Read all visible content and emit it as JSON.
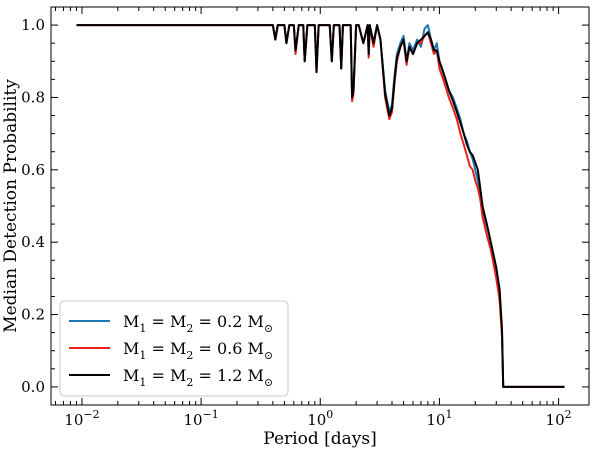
{
  "chart_data": {
    "type": "line",
    "xlabel": "Period [days]",
    "ylabel": "Median Detection Probability",
    "xscale": "log",
    "xlim": [
      0.0055,
      180
    ],
    "ylim": [
      -0.05,
      1.05
    ],
    "xticks": [
      {
        "value": 0.01,
        "base": "10",
        "exp": "−2"
      },
      {
        "value": 0.1,
        "base": "10",
        "exp": "−1"
      },
      {
        "value": 1,
        "base": "10",
        "exp": "0"
      },
      {
        "value": 10,
        "base": "10",
        "exp": "1"
      },
      {
        "value": 100,
        "base": "10",
        "exp": "2"
      }
    ],
    "yticks": [
      {
        "value": 0.0,
        "label": "0.0"
      },
      {
        "value": 0.2,
        "label": "0.2"
      },
      {
        "value": 0.4,
        "label": "0.4"
      },
      {
        "value": 0.6,
        "label": "0.6"
      },
      {
        "value": 0.8,
        "label": "0.8"
      },
      {
        "value": 1.0,
        "label": "1.0"
      }
    ],
    "grid": false,
    "legend_position": "lower-left",
    "series": [
      {
        "name": "M1 = M2 = 0.2 M☉",
        "legend": {
          "pre": "M",
          "s1": "1",
          "mid": " = M",
          "s2": "2",
          "val": " = 0.2 M",
          "sun": "⊙"
        },
        "color": "#1f77b4",
        "x": [
          0.009,
          0.4,
          0.42,
          0.44,
          0.5,
          0.52,
          0.55,
          0.6,
          0.62,
          0.66,
          0.72,
          0.74,
          0.78,
          0.9,
          0.93,
          0.97,
          1.2,
          1.25,
          1.3,
          1.45,
          1.5,
          1.55,
          1.8,
          1.85,
          1.9,
          2.0,
          2.1,
          2.3,
          2.5,
          2.55,
          2.6,
          2.8,
          3.0,
          3.2,
          3.5,
          3.8,
          4.0,
          4.2,
          4.4,
          4.7,
          5.0,
          5.3,
          5.6,
          6.0,
          6.5,
          7.0,
          7.5,
          8.0,
          8.5,
          9.0,
          9.5,
          10.0,
          10.5,
          11.0,
          12.0,
          13.0,
          14.0,
          15.0,
          16.0,
          17.0,
          18.0,
          19.0,
          20.0,
          21.0,
          22.0,
          23.0,
          25.0,
          27.0,
          30.0,
          32.0,
          33.5,
          34.3,
          34.5,
          40.0,
          112.0
        ],
        "y": [
          1.0,
          1.0,
          0.96,
          1.0,
          1.0,
          0.95,
          1.0,
          1.0,
          0.93,
          1.0,
          1.0,
          0.9,
          1.0,
          1.0,
          0.88,
          1.0,
          1.0,
          0.9,
          1.0,
          1.0,
          0.88,
          1.0,
          1.0,
          0.8,
          0.82,
          1.0,
          1.0,
          0.95,
          1.0,
          0.92,
          1.0,
          0.95,
          1.0,
          0.96,
          0.82,
          0.76,
          0.78,
          0.86,
          0.92,
          0.95,
          0.97,
          0.9,
          0.95,
          0.93,
          0.96,
          0.94,
          0.99,
          1.0,
          0.96,
          0.93,
          0.95,
          0.9,
          0.88,
          0.86,
          0.82,
          0.8,
          0.77,
          0.74,
          0.7,
          0.68,
          0.65,
          0.63,
          0.6,
          0.57,
          0.54,
          0.48,
          0.42,
          0.38,
          0.31,
          0.25,
          0.15,
          0.0,
          0.0,
          0.0,
          0.0
        ]
      },
      {
        "name": "M1 = M2 = 0.6 M☉",
        "legend": {
          "pre": "M",
          "s1": "1",
          "mid": " = M",
          "s2": "2",
          "val": " = 0.6 M",
          "sun": "⊙"
        },
        "color": "#e8201a",
        "x": [
          0.009,
          0.4,
          0.42,
          0.44,
          0.5,
          0.52,
          0.55,
          0.6,
          0.62,
          0.66,
          0.72,
          0.74,
          0.78,
          0.9,
          0.93,
          0.97,
          1.2,
          1.25,
          1.3,
          1.45,
          1.5,
          1.55,
          1.8,
          1.85,
          1.9,
          2.0,
          2.1,
          2.3,
          2.5,
          2.55,
          2.6,
          2.8,
          3.0,
          3.2,
          3.5,
          3.8,
          4.0,
          4.2,
          4.4,
          4.7,
          5.0,
          5.3,
          5.6,
          6.0,
          6.5,
          7.0,
          7.5,
          8.0,
          8.5,
          9.0,
          9.5,
          10.0,
          10.5,
          11.0,
          12.0,
          13.0,
          14.0,
          15.0,
          16.0,
          17.0,
          18.0,
          19.0,
          20.0,
          21.0,
          22.0,
          23.0,
          25.0,
          27.0,
          30.0,
          32.0,
          33.5,
          34.3,
          34.5,
          40.0,
          112.0
        ],
        "y": [
          1.0,
          1.0,
          0.96,
          1.0,
          1.0,
          0.95,
          1.0,
          1.0,
          0.92,
          1.0,
          1.0,
          0.9,
          1.0,
          1.0,
          0.87,
          1.0,
          1.0,
          0.9,
          1.0,
          1.0,
          0.88,
          1.0,
          1.0,
          0.79,
          0.81,
          1.0,
          1.0,
          0.95,
          1.0,
          0.91,
          1.0,
          0.94,
          1.0,
          0.96,
          0.8,
          0.74,
          0.76,
          0.84,
          0.9,
          0.94,
          0.96,
          0.89,
          0.94,
          0.92,
          0.95,
          0.95,
          0.97,
          0.98,
          0.95,
          0.92,
          0.93,
          0.88,
          0.86,
          0.84,
          0.8,
          0.77,
          0.74,
          0.7,
          0.67,
          0.64,
          0.61,
          0.6,
          0.57,
          0.55,
          0.52,
          0.47,
          0.42,
          0.38,
          0.3,
          0.24,
          0.14,
          0.0,
          0.0,
          0.0,
          0.0
        ]
      },
      {
        "name": "M1 = M2 = 1.2 M☉",
        "legend": {
          "pre": "M",
          "s1": "1",
          "mid": " = M",
          "s2": "2",
          "val": " = 1.2 M",
          "sun": "⊙"
        },
        "color": "#000000",
        "x": [
          0.009,
          0.4,
          0.42,
          0.44,
          0.5,
          0.52,
          0.55,
          0.6,
          0.62,
          0.66,
          0.72,
          0.74,
          0.78,
          0.9,
          0.93,
          0.97,
          1.2,
          1.25,
          1.3,
          1.45,
          1.5,
          1.55,
          1.8,
          1.85,
          1.9,
          2.0,
          2.1,
          2.3,
          2.5,
          2.55,
          2.6,
          2.8,
          3.0,
          3.2,
          3.5,
          3.8,
          4.0,
          4.2,
          4.4,
          4.7,
          5.0,
          5.3,
          5.6,
          6.0,
          6.5,
          7.0,
          7.5,
          8.0,
          8.5,
          9.0,
          9.5,
          10.0,
          10.5,
          11.0,
          12.0,
          13.0,
          14.0,
          15.0,
          16.0,
          17.0,
          18.0,
          19.0,
          20.0,
          21.0,
          22.0,
          23.0,
          25.0,
          27.0,
          30.0,
          32.0,
          33.5,
          34.3,
          34.5,
          40.0,
          112.0
        ],
        "y": [
          1.0,
          1.0,
          0.96,
          1.0,
          1.0,
          0.95,
          1.0,
          1.0,
          0.93,
          1.0,
          1.0,
          0.9,
          1.0,
          1.0,
          0.87,
          1.0,
          1.0,
          0.9,
          1.0,
          1.0,
          0.88,
          1.0,
          1.0,
          0.8,
          0.82,
          1.0,
          1.0,
          0.95,
          1.0,
          0.92,
          1.0,
          0.95,
          1.0,
          0.96,
          0.81,
          0.75,
          0.77,
          0.85,
          0.91,
          0.94,
          0.96,
          0.9,
          0.94,
          0.92,
          0.95,
          0.96,
          0.97,
          0.98,
          0.96,
          0.93,
          0.93,
          0.9,
          0.88,
          0.86,
          0.82,
          0.79,
          0.76,
          0.73,
          0.7,
          0.67,
          0.65,
          0.64,
          0.62,
          0.6,
          0.55,
          0.5,
          0.45,
          0.4,
          0.33,
          0.27,
          0.16,
          0.0,
          0.0,
          0.0,
          0.0
        ]
      }
    ]
  }
}
